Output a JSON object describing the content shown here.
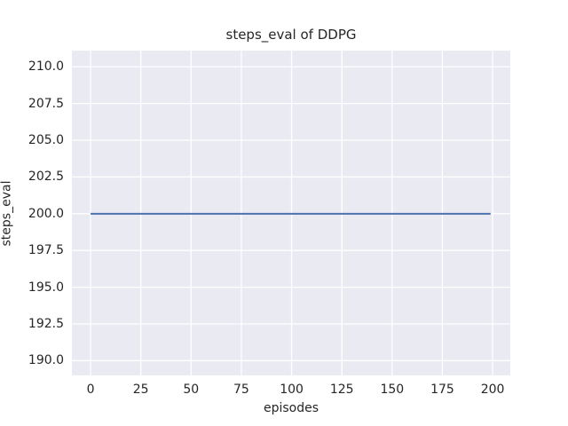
{
  "figure": {
    "background": "#FFFFFF",
    "text_color": "#262626"
  },
  "chart_data": {
    "type": "line",
    "title": "steps_eval of DDPG",
    "xlabel": "episodes",
    "ylabel": "steps_eval",
    "xlim": [
      -9.3,
      208.8
    ],
    "ylim": [
      189.0,
      211.1
    ],
    "xticks": [
      0,
      25,
      50,
      75,
      100,
      125,
      150,
      175,
      200
    ],
    "xtick_labels": [
      "0",
      "25",
      "50",
      "75",
      "100",
      "125",
      "150",
      "175",
      "200"
    ],
    "yticks": [
      190.0,
      192.5,
      195.0,
      197.5,
      200.0,
      202.5,
      205.0,
      207.5,
      210.0
    ],
    "ytick_labels": [
      "190.0",
      "192.5",
      "195.0",
      "197.5",
      "200.0",
      "202.5",
      "205.0",
      "207.5",
      "210.0"
    ],
    "grid": true,
    "legend_position": "none",
    "plot_background": "#EAEAF2",
    "grid_color": "#FFFFFF",
    "series": [
      {
        "name": "steps_eval",
        "color": "#4C72B0",
        "linewidth": 2,
        "x": [
          0,
          199
        ],
        "values": [
          200,
          200
        ]
      }
    ]
  }
}
